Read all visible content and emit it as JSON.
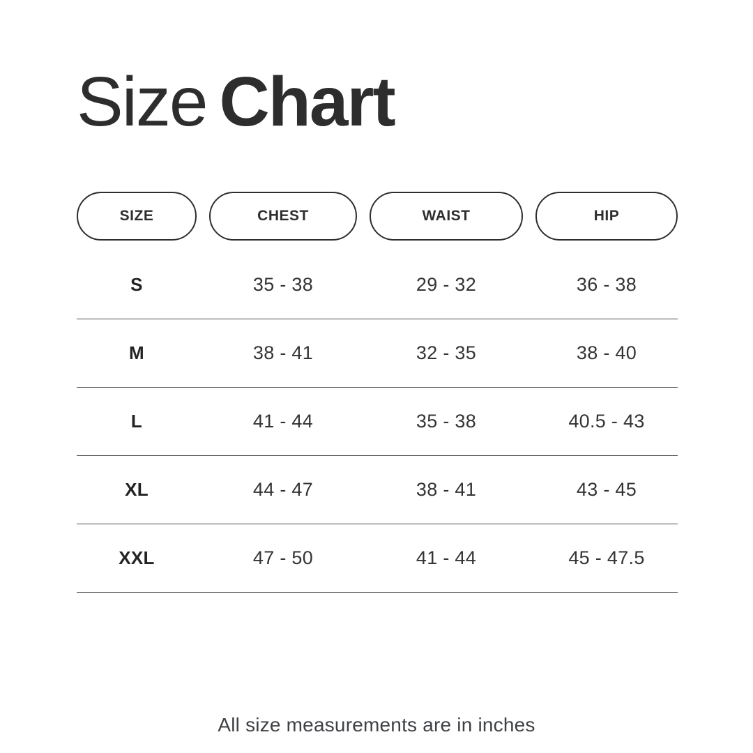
{
  "title": {
    "regular": "Size",
    "bold": "Chart"
  },
  "footer_note": "All size measurements are in inches",
  "colors": {
    "background": "#ffffff",
    "text_dark": "#2d2d2d",
    "pill_border": "#2e2e2e",
    "divider_line": "#4a4a4a",
    "footnote_text": "#3e4145"
  },
  "chart_data": {
    "type": "table",
    "title": "Size Chart",
    "columns": [
      "SIZE",
      "CHEST",
      "WAIST",
      "HIP"
    ],
    "rows": [
      [
        "S",
        "35 - 38",
        "29 - 32",
        "36 - 38"
      ],
      [
        "M",
        "38 - 41",
        "32 - 35",
        "38 - 40"
      ],
      [
        "L",
        "41 - 44",
        "35 - 38",
        "40.5 - 43"
      ],
      [
        "XL",
        "44 - 47",
        "38 - 41",
        "43 - 45"
      ],
      [
        "XXL",
        "47 - 50",
        "41 - 44",
        "45 - 47.5"
      ]
    ],
    "note": "All size measurements are in inches",
    "units": "inches"
  }
}
